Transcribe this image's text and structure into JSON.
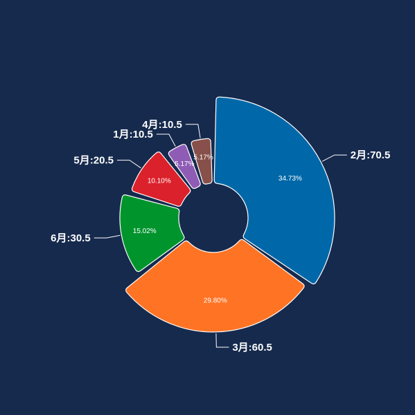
{
  "chart_data": {
    "type": "pie",
    "variant": "rose-donut",
    "slices": [
      {
        "label": "2月",
        "value": 70.5,
        "percent": "34.73%",
        "outer_label": "2月:70.5",
        "color": "#0068a8"
      },
      {
        "label": "3月",
        "value": 60.5,
        "percent": "29.80%",
        "outer_label": "3月:60.5",
        "color": "#ff7324"
      },
      {
        "label": "6月",
        "value": 30.5,
        "percent": "15.02%",
        "outer_label": "6月:30.5",
        "color": "#00942d"
      },
      {
        "label": "5月",
        "value": 20.5,
        "percent": "10.10%",
        "outer_label": "5月:20.5",
        "color": "#db212b"
      },
      {
        "label": "1月",
        "value": 10.5,
        "percent": "5.17%",
        "outer_label": "1月:10.5",
        "color": "#8f5cb5"
      },
      {
        "label": "4月",
        "value": 10.5,
        "percent": "5.17%",
        "outer_label": "4月:10.5",
        "color": "#87504a"
      }
    ],
    "title": "",
    "legend": "none",
    "background": "#162a4d"
  }
}
